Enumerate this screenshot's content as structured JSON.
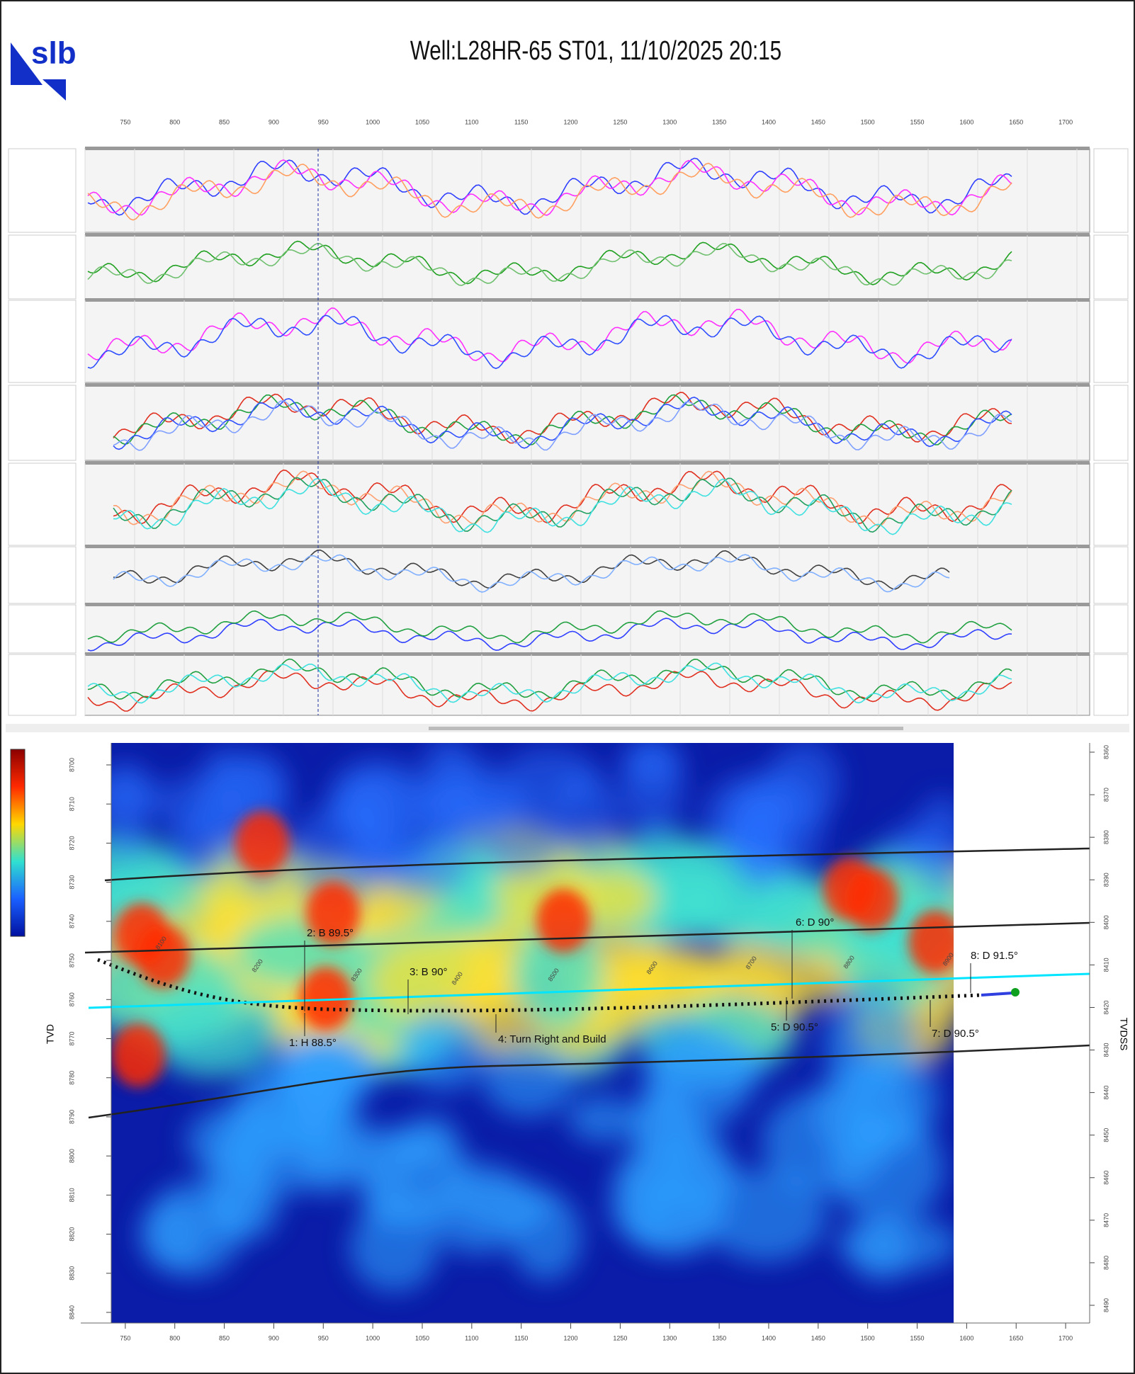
{
  "header": {
    "logo": "slb",
    "title": "Well:L28HR-65 ST01, 11/10/2025 20:15"
  },
  "section": {
    "xticks": [
      750,
      800,
      850,
      900,
      950,
      1000,
      1050,
      1100,
      1150,
      1200,
      1250,
      1300,
      1350,
      1400,
      1450,
      1500,
      1550,
      1600,
      1650,
      1700
    ],
    "xlim": [
      705,
      1730
    ],
    "left_axis_label": "TVD",
    "right_axis_label": "TVDSS",
    "left_ticks": [
      8700,
      8710,
      8720,
      8730,
      8740,
      8750,
      8760,
      8770,
      8780,
      8790,
      8800,
      8810,
      8820,
      8830,
      8840
    ],
    "right_ticks": [
      8360,
      8370,
      8380,
      8390,
      8400,
      8410,
      8420,
      8430,
      8440,
      8450,
      8460,
      8470,
      8480,
      8490
    ],
    "annotations": [
      "1: H 88.5°",
      "2: B 89.5°",
      "3: B 90°",
      "4: Turn Right and Build",
      "5: D 90.5°",
      "6: D 90°",
      "7: D 90.5°",
      "8: D 91.5°"
    ],
    "md_labels": [
      "8100",
      "8200",
      "8300",
      "8400",
      "8500",
      "8600",
      "8700",
      "8800",
      "8900"
    ]
  }
}
